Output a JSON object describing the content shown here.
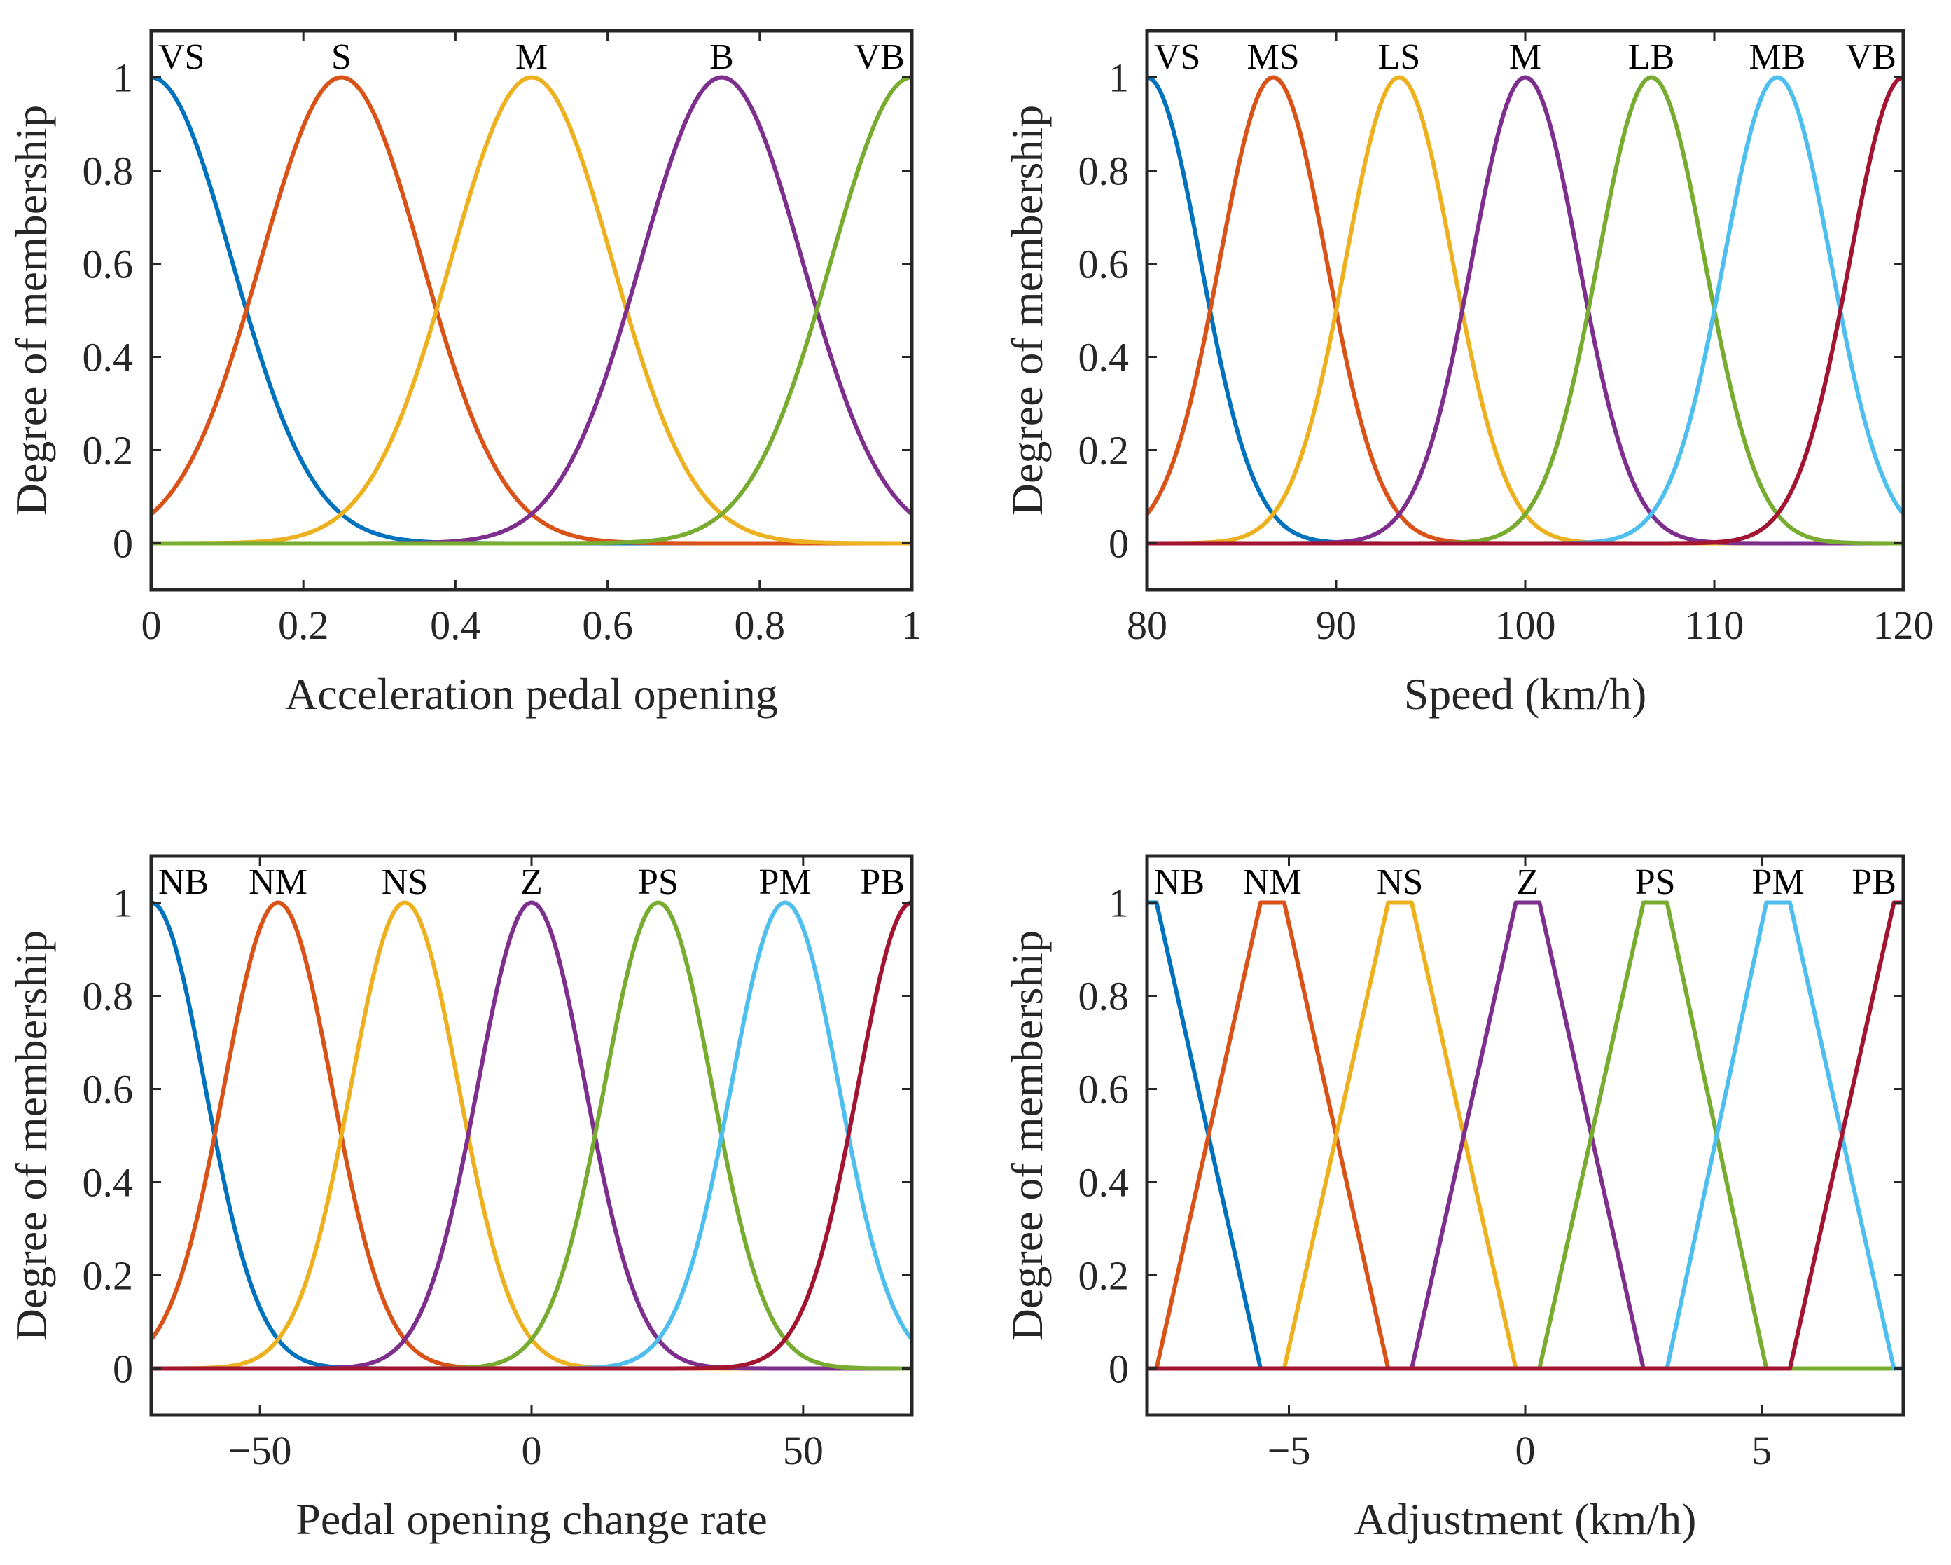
{
  "chart_data": [
    {
      "type": "line",
      "title": "",
      "xlabel": "Acceleration pedal opening",
      "ylabel": "Degree of membership",
      "xlim": [
        0,
        1
      ],
      "ylim": [
        -0.1,
        1.1
      ],
      "xticks": [
        0,
        0.2,
        0.4,
        0.6,
        0.8,
        1
      ],
      "xtick_labels": [
        "0",
        "0.2",
        "0.4",
        "0.6",
        "0.8",
        "1"
      ],
      "yticks": [
        0,
        0.2,
        0.4,
        0.6,
        0.8,
        1
      ],
      "ytick_labels": [
        "0",
        "0.2",
        "0.4",
        "0.6",
        "0.8",
        "1"
      ],
      "mf_shape": "gauss",
      "sigma": 0.1062,
      "series": [
        {
          "name": "VS",
          "center": 0,
          "color": "#0072BD"
        },
        {
          "name": "S",
          "center": 0.25,
          "color": "#D95319"
        },
        {
          "name": "M",
          "center": 0.5,
          "color": "#EDB120"
        },
        {
          "name": "B",
          "center": 0.75,
          "color": "#7E2F8E"
        },
        {
          "name": "VB",
          "center": 1,
          "color": "#77AC30"
        }
      ]
    },
    {
      "type": "line",
      "title": "",
      "xlabel": "Speed (km/h)",
      "ylabel": "Degree of membership",
      "xlim": [
        80,
        120
      ],
      "ylim": [
        -0.1,
        1.1
      ],
      "xticks": [
        80,
        90,
        100,
        110,
        120
      ],
      "xtick_labels": [
        "80",
        "90",
        "100",
        "110",
        "120"
      ],
      "yticks": [
        0,
        0.2,
        0.4,
        0.6,
        0.8,
        1
      ],
      "ytick_labels": [
        "0",
        "0.2",
        "0.4",
        "0.6",
        "0.8",
        "1"
      ],
      "mf_shape": "gauss",
      "sigma": 2.83,
      "series": [
        {
          "name": "VS",
          "center": 80,
          "color": "#0072BD"
        },
        {
          "name": "MS",
          "center": 86.67,
          "color": "#D95319"
        },
        {
          "name": "LS",
          "center": 93.33,
          "color": "#EDB120"
        },
        {
          "name": "M",
          "center": 100,
          "color": "#7E2F8E"
        },
        {
          "name": "LB",
          "center": 106.67,
          "color": "#77AC30"
        },
        {
          "name": "MB",
          "center": 113.33,
          "color": "#4DBEEE"
        },
        {
          "name": "VB",
          "center": 120,
          "color": "#A2142F"
        }
      ]
    },
    {
      "type": "line",
      "title": "",
      "xlabel": "Pedal opening change rate",
      "ylabel": "Degree of membership",
      "xlim": [
        -70,
        70
      ],
      "ylim": [
        -0.1,
        1.1
      ],
      "xticks": [
        -50,
        0,
        50
      ],
      "xtick_labels": [
        "−50",
        "0",
        "50"
      ],
      "yticks": [
        0,
        0.2,
        0.4,
        0.6,
        0.8,
        1
      ],
      "ytick_labels": [
        "0",
        "0.2",
        "0.4",
        "0.6",
        "0.8",
        "1"
      ],
      "mf_shape": "gauss",
      "sigma": 9.91,
      "series": [
        {
          "name": "NB",
          "center": -70,
          "color": "#0072BD"
        },
        {
          "name": "NM",
          "center": -46.67,
          "color": "#D95319"
        },
        {
          "name": "NS",
          "center": -23.33,
          "color": "#EDB120"
        },
        {
          "name": "Z",
          "center": 0,
          "color": "#7E2F8E"
        },
        {
          "name": "PS",
          "center": 23.33,
          "color": "#77AC30"
        },
        {
          "name": "PM",
          "center": 46.67,
          "color": "#4DBEEE"
        },
        {
          "name": "PB",
          "center": 70,
          "color": "#A2142F"
        }
      ]
    },
    {
      "type": "line",
      "title": "",
      "xlabel": "Adjustment (km/h)",
      "ylabel": "Degree of membership",
      "xlim": [
        -8,
        8
      ],
      "ylim": [
        -0.1,
        1.1
      ],
      "xticks": [
        -5,
        0,
        5
      ],
      "xtick_labels": [
        "−5",
        "0",
        "5"
      ],
      "yticks": [
        0,
        0.2,
        0.4,
        0.6,
        0.8,
        1
      ],
      "ytick_labels": [
        "0",
        "0.2",
        "0.4",
        "0.6",
        "0.8",
        "1"
      ],
      "mf_shape": "trapezoid",
      "series": [
        {
          "name": "NB",
          "points": [
            [
              -8,
              1
            ],
            [
              -7.8,
              1
            ],
            [
              -5.6,
              0
            ],
            [
              8,
              0
            ]
          ],
          "color": "#0072BD"
        },
        {
          "name": "NM",
          "points": [
            [
              -8,
              0
            ],
            [
              -7.8,
              0
            ],
            [
              -5.6,
              1
            ],
            [
              -5.1,
              1
            ],
            [
              -2.9,
              0
            ],
            [
              8,
              0
            ]
          ],
          "color": "#D95319"
        },
        {
          "name": "NS",
          "points": [
            [
              -8,
              0
            ],
            [
              -5.1,
              0
            ],
            [
              -2.9,
              1
            ],
            [
              -2.4,
              1
            ],
            [
              -0.2,
              0
            ],
            [
              8,
              0
            ]
          ],
          "color": "#EDB120"
        },
        {
          "name": "Z",
          "points": [
            [
              -8,
              0
            ],
            [
              -2.4,
              0
            ],
            [
              -0.2,
              1
            ],
            [
              0.3,
              1
            ],
            [
              2.5,
              0
            ],
            [
              8,
              0
            ]
          ],
          "color": "#7E2F8E"
        },
        {
          "name": "PS",
          "points": [
            [
              -8,
              0
            ],
            [
              0.3,
              0
            ],
            [
              2.5,
              1
            ],
            [
              3.0,
              1
            ],
            [
              5.1,
              0
            ],
            [
              8,
              0
            ]
          ],
          "color": "#77AC30"
        },
        {
          "name": "PM",
          "points": [
            [
              -8,
              0
            ],
            [
              3.0,
              0
            ],
            [
              5.1,
              1
            ],
            [
              5.6,
              1
            ],
            [
              7.8,
              0
            ],
            [
              8,
              0
            ]
          ],
          "color": "#4DBEEE"
        },
        {
          "name": "PB",
          "points": [
            [
              -8,
              0
            ],
            [
              5.6,
              0
            ],
            [
              7.8,
              1
            ],
            [
              8,
              1
            ]
          ],
          "color": "#A2142F"
        }
      ]
    }
  ]
}
